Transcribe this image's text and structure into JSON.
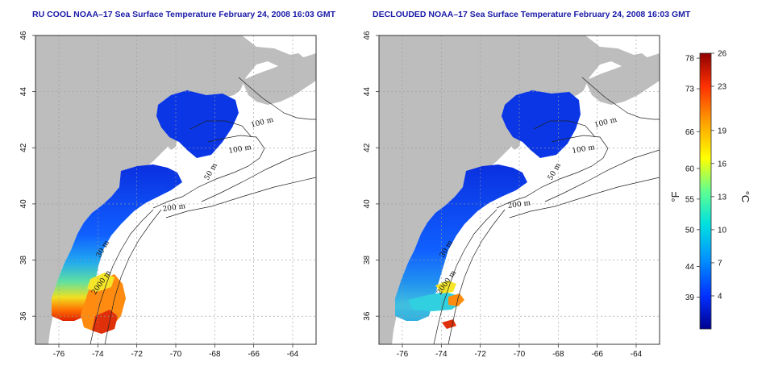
{
  "panels": [
    {
      "title": "RU COOL NOAA–17 Sea Surface Temperature February 24, 2008 16:03 GMT"
    },
    {
      "title": "DECLOUDED NOAA–17 Sea Surface Temperature February 24, 2008 16:03 GMT"
    }
  ],
  "map": {
    "lon_ticks": [
      "-76",
      "-74",
      "-72",
      "-70",
      "-68",
      "-66",
      "-64"
    ],
    "lat_ticks": [
      "36",
      "38",
      "40",
      "42",
      "44",
      "46"
    ],
    "lon_range": [
      -77.2,
      -62.8
    ],
    "lat_range": [
      35.0,
      46.0
    ],
    "grid": true,
    "land_color": "#bdbdbd",
    "contour_labels": [
      "100 m",
      "100 m",
      "50 m",
      "200 m",
      "30 m",
      "2000 m"
    ]
  },
  "colorbar": {
    "fahrenheit_ticks": [
      "78",
      "73",
      "66",
      "60",
      "55",
      "50",
      "44",
      "39"
    ],
    "celsius_ticks": [
      "26",
      "23",
      "19",
      "16",
      "13",
      "10",
      "7",
      "4"
    ],
    "fahrenheit_label": "°F",
    "celsius_label": "°C",
    "range_c": [
      1,
      26
    ],
    "colors": [
      "#00008f",
      "#0030ff",
      "#0090ff",
      "#00e0e0",
      "#60ff90",
      "#ffff00",
      "#ffa000",
      "#ff3000",
      "#8f0000"
    ]
  }
}
